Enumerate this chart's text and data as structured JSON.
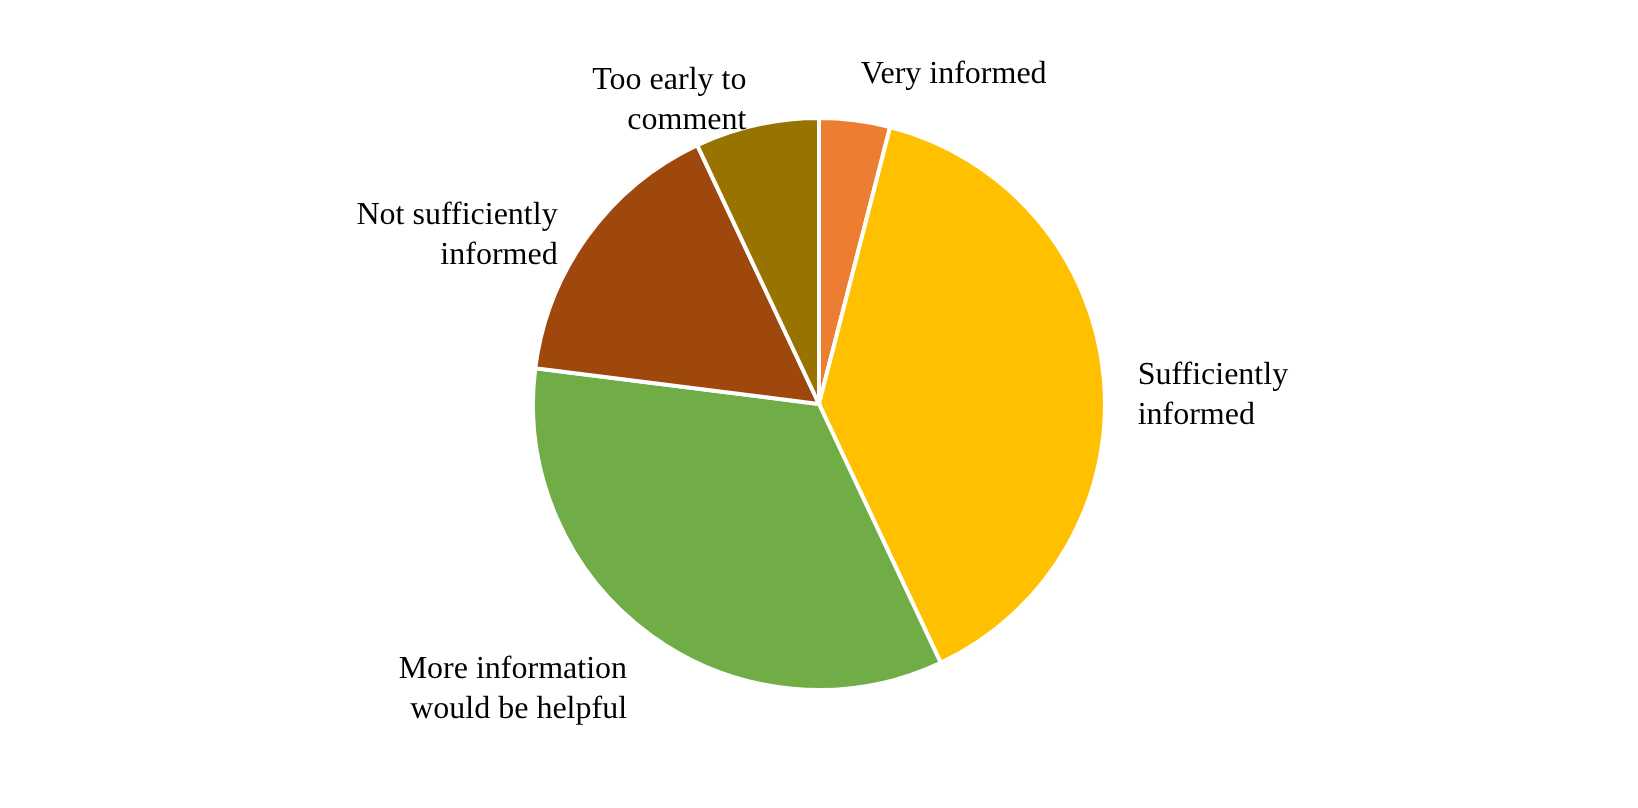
{
  "chart_data": {
    "type": "pie",
    "categories": [
      "Very informed",
      "Sufficiently informed",
      "More information would be helpful",
      "Not sufficiently informed",
      "Too early to comment"
    ],
    "values": [
      4,
      39,
      34,
      16,
      7
    ],
    "colors": [
      "#ed7d31",
      "#ffc000",
      "#70ad47",
      "#9e480e",
      "#997300"
    ]
  }
}
